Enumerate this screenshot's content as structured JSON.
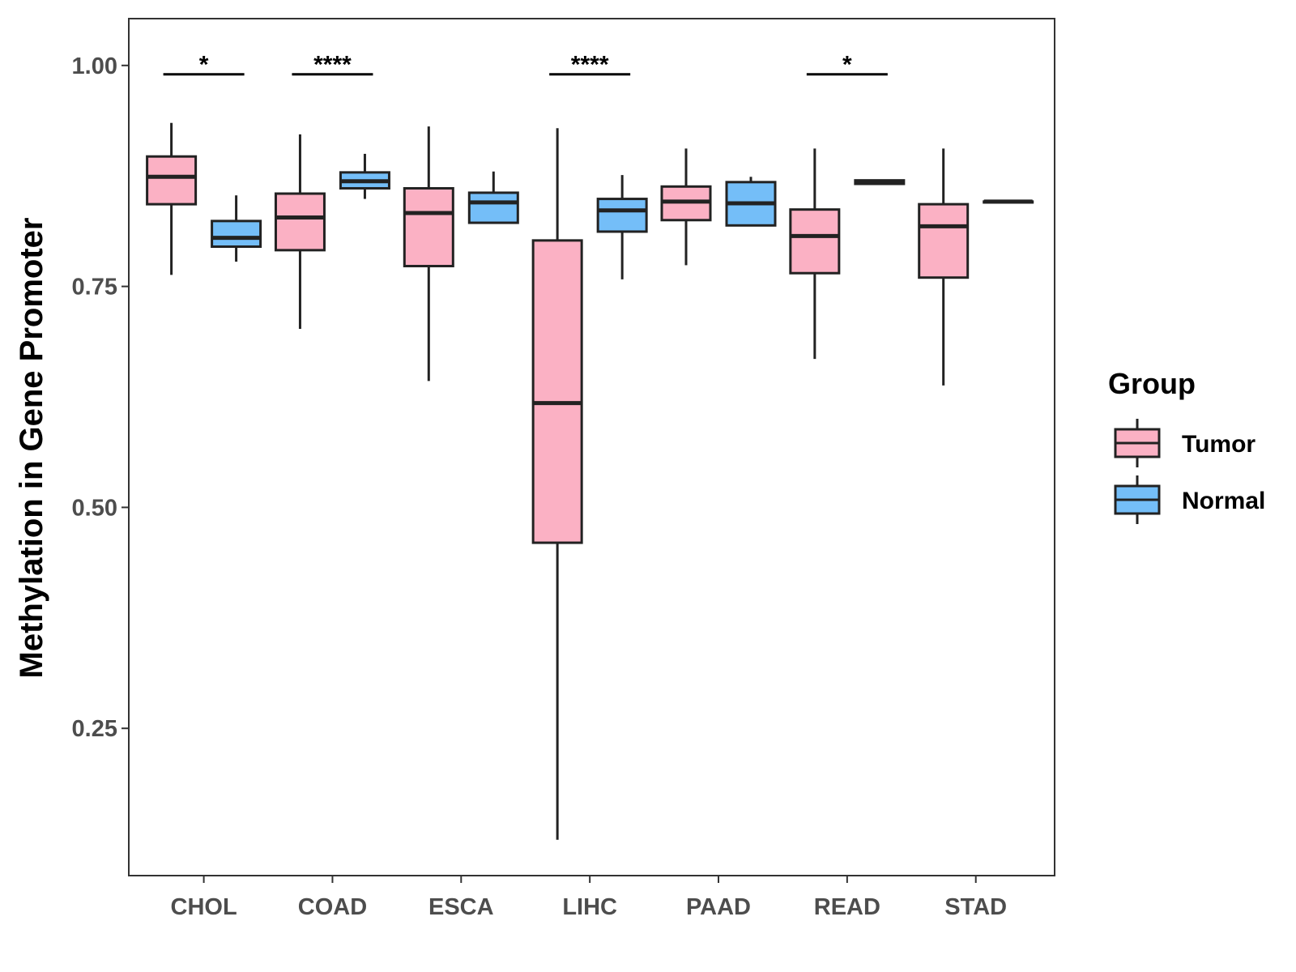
{
  "chart_data": {
    "type": "boxplot",
    "title": "",
    "xlabel": "",
    "ylabel": "Methylation in Gene Promoter",
    "ylim": [
      0.1,
      1.05
    ],
    "yticks": [
      0.25,
      0.5,
      0.75,
      1.0
    ],
    "ytick_labels": [
      "0.25",
      "0.50",
      "0.75",
      "1.00"
    ],
    "categories": [
      "CHOL",
      "COAD",
      "ESCA",
      "LIHC",
      "PAAD",
      "READ",
      "STAD"
    ],
    "legend": {
      "title": "Group",
      "position": "right",
      "entries": [
        {
          "name": "Tumor",
          "color": "#FBB1C4"
        },
        {
          "name": "Normal",
          "color": "#74BEF8"
        }
      ]
    },
    "series": [
      {
        "name": "Tumor",
        "color": "#FBB1C4",
        "boxes": [
          {
            "category": "CHOL",
            "min": 0.763,
            "q1": 0.843,
            "median": 0.874,
            "q3": 0.897,
            "max": 0.935
          },
          {
            "category": "COAD",
            "min": 0.702,
            "q1": 0.791,
            "median": 0.828,
            "q3": 0.855,
            "max": 0.922
          },
          {
            "category": "ESCA",
            "min": 0.643,
            "q1": 0.773,
            "median": 0.833,
            "q3": 0.861,
            "max": 0.931
          },
          {
            "category": "LIHC",
            "min": 0.124,
            "q1": 0.46,
            "median": 0.618,
            "q3": 0.802,
            "max": 0.929
          },
          {
            "category": "PAAD",
            "min": 0.774,
            "q1": 0.825,
            "median": 0.846,
            "q3": 0.863,
            "max": 0.906
          },
          {
            "category": "READ",
            "min": 0.668,
            "q1": 0.765,
            "median": 0.807,
            "q3": 0.837,
            "max": 0.906
          },
          {
            "category": "STAD",
            "min": 0.638,
            "q1": 0.76,
            "median": 0.818,
            "q3": 0.843,
            "max": 0.906
          }
        ]
      },
      {
        "name": "Normal",
        "color": "#74BEF8",
        "boxes": [
          {
            "category": "CHOL",
            "min": 0.778,
            "q1": 0.795,
            "median": 0.805,
            "q3": 0.824,
            "max": 0.853
          },
          {
            "category": "COAD",
            "min": 0.849,
            "q1": 0.861,
            "median": 0.869,
            "q3": 0.879,
            "max": 0.9
          },
          {
            "category": "ESCA",
            "min": 0.821,
            "q1": 0.822,
            "median": 0.845,
            "q3": 0.856,
            "max": 0.88
          },
          {
            "category": "LIHC",
            "min": 0.758,
            "q1": 0.812,
            "median": 0.836,
            "q3": 0.849,
            "max": 0.876
          },
          {
            "category": "PAAD",
            "min": 0.818,
            "q1": 0.819,
            "median": 0.844,
            "q3": 0.868,
            "max": 0.874
          },
          {
            "category": "READ",
            "min": 0.866,
            "q1": 0.866,
            "median": 0.868,
            "q3": 0.87,
            "max": 0.87
          },
          {
            "category": "STAD",
            "min": 0.845,
            "q1": 0.845,
            "median": 0.846,
            "q3": 0.846,
            "max": 0.846
          }
        ]
      }
    ],
    "annotations": [
      {
        "category": "CHOL",
        "label": "*",
        "y": 0.99
      },
      {
        "category": "COAD",
        "label": "****",
        "y": 0.99
      },
      {
        "category": "LIHC",
        "label": "****",
        "y": 0.99
      },
      {
        "category": "READ",
        "label": "*",
        "y": 0.99
      }
    ]
  }
}
